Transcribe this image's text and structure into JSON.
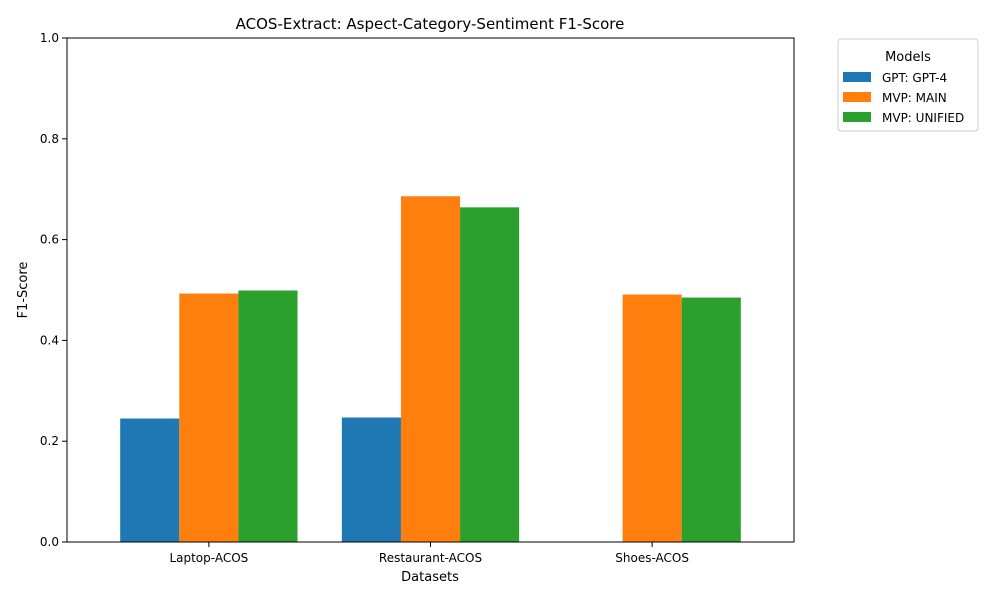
{
  "chart_data": {
    "type": "bar",
    "title": "ACOS-Extract: Aspect-Category-Sentiment F1-Score",
    "xlabel": "Datasets",
    "ylabel": "F1-Score",
    "ylim": [
      0,
      1.0
    ],
    "yticks": [
      "0.0",
      "0.2",
      "0.4",
      "0.6",
      "0.8",
      "1.0"
    ],
    "categories": [
      "Laptop-ACOS",
      "Restaurant-ACOS",
      "Shoes-ACOS"
    ],
    "series": [
      {
        "name": "GPT: GPT-4",
        "color": "#1f77b4",
        "values": [
          0.245,
          0.247,
          null
        ]
      },
      {
        "name": "MVP: MAIN",
        "color": "#ff7f0e",
        "values": [
          0.493,
          0.686,
          0.491
        ]
      },
      {
        "name": "MVP: UNIFIED",
        "color": "#2ca02c",
        "values": [
          0.499,
          0.664,
          0.485
        ]
      }
    ],
    "legend": {
      "title": "Models",
      "placement": "outside-top-right"
    },
    "grid": false
  }
}
